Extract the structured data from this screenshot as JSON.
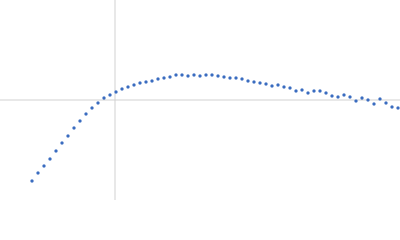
{
  "chart_data": {
    "type": "scatter",
    "x": [
      -0.83,
      -0.77,
      -0.71,
      -0.65,
      -0.59,
      -0.53,
      -0.47,
      -0.41,
      -0.35,
      -0.29,
      -0.23,
      -0.17,
      -0.11,
      -0.05,
      0.01,
      0.07,
      0.13,
      0.19,
      0.25,
      0.31,
      0.37,
      0.43,
      0.49,
      0.55,
      0.61,
      0.67,
      0.73,
      0.79,
      0.85,
      0.91,
      0.97,
      1.03,
      1.09,
      1.15,
      1.21,
      1.27,
      1.33,
      1.39,
      1.45,
      1.51,
      1.57,
      1.63,
      1.69,
      1.75,
      1.81,
      1.87,
      1.93,
      1.99,
      2.05,
      2.11,
      2.17,
      2.23,
      2.29,
      2.35,
      2.41,
      2.47,
      2.53,
      2.59,
      2.65,
      2.71,
      2.77,
      2.83
    ],
    "values": [
      -0.81,
      -0.73,
      -0.66,
      -0.59,
      -0.51,
      -0.43,
      -0.36,
      -0.28,
      -0.21,
      -0.14,
      -0.08,
      -0.03,
      0.02,
      0.05,
      0.08,
      0.11,
      0.13,
      0.15,
      0.17,
      0.18,
      0.19,
      0.21,
      0.22,
      0.23,
      0.25,
      0.25,
      0.24,
      0.25,
      0.24,
      0.25,
      0.25,
      0.24,
      0.23,
      0.22,
      0.22,
      0.21,
      0.19,
      0.18,
      0.17,
      0.16,
      0.14,
      0.15,
      0.13,
      0.12,
      0.09,
      0.1,
      0.07,
      0.09,
      0.09,
      0.07,
      0.04,
      0.03,
      0.05,
      0.03,
      -0.01,
      0.02,
      0.0,
      -0.04,
      0.01,
      -0.03,
      -0.07,
      -0.08
    ],
    "color": "#3a6cc0",
    "xlim": [
      -1.15,
      2.85
    ],
    "ylim": [
      -1,
      1
    ],
    "xticks": [
      0
    ],
    "yticks": [
      0
    ],
    "grid": true
  }
}
